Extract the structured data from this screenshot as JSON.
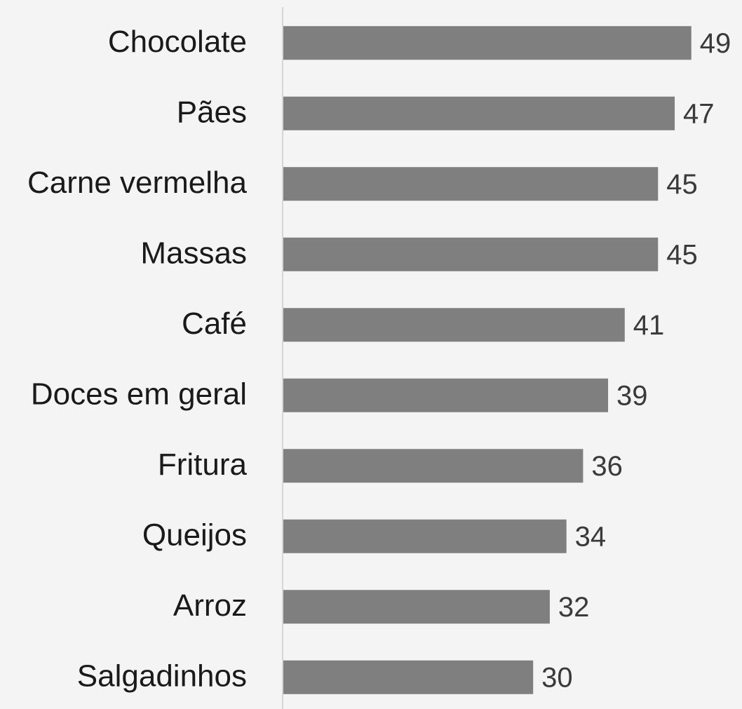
{
  "chart_data": {
    "type": "bar",
    "orientation": "horizontal",
    "categories": [
      "Chocolate",
      "Pães",
      "Carne vermelha",
      "Massas",
      "Café",
      "Doces em geral",
      "Fritura",
      "Queijos",
      "Arroz",
      "Salgadinhos"
    ],
    "values": [
      49,
      47,
      45,
      45,
      41,
      39,
      36,
      34,
      32,
      30
    ],
    "color": "#7f7f7f",
    "xlim": [
      0,
      55
    ]
  }
}
